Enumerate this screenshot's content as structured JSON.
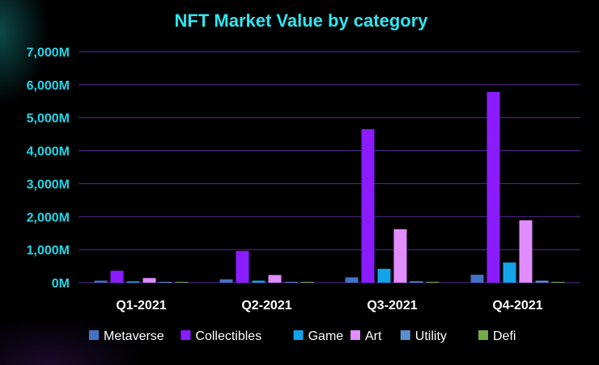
{
  "chart_data": {
    "type": "bar",
    "title": "NFT Market Value by category",
    "categories": [
      "Q1-2021",
      "Q2-2021",
      "Q3-2021",
      "Q4-2021"
    ],
    "ylim": [
      0,
      7000
    ],
    "yticks": [
      0,
      1000,
      2000,
      3000,
      4000,
      5000,
      6000,
      7000
    ],
    "ytick_labels": [
      "0M",
      "1,000M",
      "2,000M",
      "3,000M",
      "4,000M",
      "5,000M",
      "6,000M",
      "7,000M"
    ],
    "grid": true,
    "legend_position": "bottom",
    "series": [
      {
        "name": "Metaverse",
        "color": "#4472c4",
        "values": [
          60,
          100,
          160,
          240
        ]
      },
      {
        "name": "Collectibles",
        "color": "#8a1cff",
        "values": [
          360,
          960,
          4650,
          5780
        ]
      },
      {
        "name": "Game",
        "color": "#12a3e8",
        "values": [
          40,
          60,
          420,
          610
        ]
      },
      {
        "name": "Art",
        "color": "#e18cff",
        "values": [
          140,
          230,
          1620,
          1890
        ]
      },
      {
        "name": "Utility",
        "color": "#5a8fcf",
        "values": [
          10,
          15,
          40,
          60
        ]
      },
      {
        "name": "Defi",
        "color": "#70ad47",
        "values": [
          2,
          3,
          5,
          8
        ]
      }
    ]
  }
}
